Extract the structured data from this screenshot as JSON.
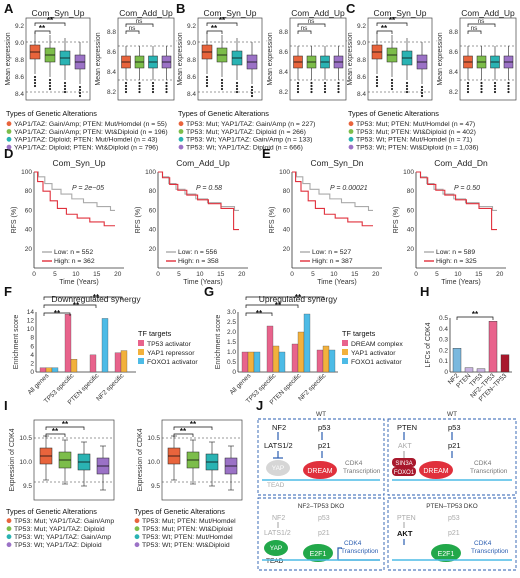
{
  "panel_letters": [
    "A",
    "B",
    "C",
    "D",
    "E",
    "F",
    "G",
    "H",
    "I",
    "J"
  ],
  "colors": {
    "orange": "#e8643c",
    "green": "#7cbd4a",
    "teal": "#2ab3b3",
    "purple": "#9b72c6",
    "red": "#e0303c",
    "gray": "#aaaaaa",
    "blue_dark": "#2a5db0",
    "pink": "#e8638c",
    "yellow": "#f2b13c",
    "skyblue": "#4dbbe6",
    "darkred": "#a8182c",
    "lightblue": "#7ab8de",
    "lavender": "#c9b3e0"
  },
  "boxplots": {
    "y_label": "Mean expression",
    "syn_title": "Com_Syn_Up",
    "add_title": "Com_Add_Up",
    "y_ticks": [
      "9.2",
      "9.0",
      "8.8",
      "8.6",
      "8.4"
    ],
    "add_ticks": [
      "8.8",
      "8.6",
      "8.4",
      "8.2"
    ],
    "sig": "**",
    "ns": "ns",
    "legend_title": "Types of Genetic Alterations",
    "A": {
      "legend": [
        "YAP1/TAZ: Gain/Amp; PTEN: Mut/Homdel (n = 55)",
        "YAP1/TAZ: Gain/Amp; PTEN: Wt&Diploid (n = 196)",
        "YAP1/TAZ: Diploid; PTEN: Mut/Homdel (n = 43)",
        "YAP1/TAZ: Diploid; PTEN: Wt&Diploid (n = 796)"
      ]
    },
    "B": {
      "legend": [
        "TP53: Mut; YAP1/TAZ: Gain/Amp (n = 227)",
        "TP53: Mut; YAP1/TAZ: Diploid (n = 266)",
        "TP53: Wt; YAP1/TAZ: Gain/Amp (n = 133)",
        "TP53: Wt; YAP1/TAZ: Diploid (n = 666)"
      ]
    },
    "C": {
      "legend": [
        "TP53: Mut; PTEN: Mut/Homdel (n = 47)",
        "TP53: Mut; PTEN: Wt&Diploid (n = 402)",
        "TP53: Wt; PTEN: Mut/Homdel (n = 71)",
        "TP53: Wt; PTEN: Wt&Diploid (n = 1,036)"
      ]
    }
  },
  "km": {
    "y_label": "RFS (%)",
    "x_label": "Time (Years)",
    "x_ticks": [
      "0",
      "5",
      "10",
      "15",
      "20"
    ],
    "y_ticks": [
      "100",
      "80",
      "60",
      "40",
      "20"
    ],
    "D1": {
      "title": "Com_Syn_Up",
      "p": "P = 2e−05",
      "low": "Low: n = 552",
      "high": "High: n = 362"
    },
    "D2": {
      "title": "Com_Add_Up",
      "p": "P = 0.58",
      "low": "Low: n = 556",
      "high": "High: n = 358"
    },
    "E1": {
      "title": "Com_Syn_Dn",
      "p": "P = 0.00021",
      "low": "Low: n = 527",
      "high": "High: n = 387"
    },
    "E2": {
      "title": "Com_Add_Dn",
      "p": "P = 0.50",
      "low": "Low: n = 589",
      "high": "High: n = 325"
    }
  },
  "bars": {
    "y_label": "Enrichment score",
    "categories": [
      "All genes",
      "TP53 specific",
      "PTEN specific",
      "NF2 specific"
    ],
    "F": {
      "title": "Downregulated synergy",
      "legend_title": "TF targets",
      "legend": [
        "TP53 activator",
        "YAP1 repressor",
        "FOXO1 activator"
      ],
      "y_ticks": [
        "0",
        "2",
        "4",
        "6",
        "8",
        "10",
        "12",
        "14"
      ],
      "ymax": 14,
      "series": [
        [
          1,
          13.5,
          4,
          4.5
        ],
        [
          1,
          3,
          0,
          5
        ],
        [
          1,
          0,
          12.5,
          0
        ]
      ]
    },
    "G": {
      "title": "Upregulated synergy",
      "legend_title": "TF targets",
      "legend": [
        "DREAM complex",
        "YAP1 activator",
        "FOXO1 activator"
      ],
      "y_ticks": [
        "0",
        "0.5",
        "1.0",
        "1.5",
        "2.0",
        "2.5",
        "3.0"
      ],
      "ymax": 3.0,
      "series": [
        [
          1,
          2.3,
          1.4,
          1.1
        ],
        [
          1,
          1.3,
          2.0,
          1.3
        ],
        [
          1,
          1.0,
          2.9,
          1.1
        ]
      ]
    },
    "H": {
      "y_label": "LFCs of CDK4",
      "y_ticks": [
        "0",
        "0.1",
        "0.2",
        "0.3",
        "0.4",
        "0.5"
      ],
      "categories": [
        "NF2",
        "PTEN",
        "TP53",
        "NF2–TP53",
        "PTEN–TP53"
      ],
      "values": [
        0.22,
        0.04,
        0.03,
        0.47,
        0.16
      ]
    }
  },
  "cdk4": {
    "y_label": "Expression of CDK4",
    "y_ticks": [
      "10.5",
      "10.0",
      "9.5"
    ],
    "legend_title": "Types of Genetic Alterations",
    "left_legend": [
      "TP53: Mut; YAP1/TAZ: Gain/Amp",
      "TP53: Mut; YAP1/TAZ: Diploid",
      "TP53: Wt; YAP1/TAZ: Gain/Amp",
      "TP53: Wt; YAP1/TAZ: Diploid"
    ],
    "right_legend": [
      "TP53: Mut; PTEN: Mut/Homdel",
      "TP53: Mut; PTEN: Wt&Diploid",
      "TP53: Wt; PTEN: Mut/Homdel",
      "TP53: Wt; PTEN: Wt&Diploid"
    ]
  },
  "diagram": {
    "wt": "WT",
    "dko1": "NF2–TP53 DKO",
    "dko2": "PTEN–TP53 DKO",
    "nf2": "NF2",
    "lats": "LATS1/2",
    "p53": "p53",
    "p21": "p21",
    "yap": "YAP",
    "tead": "TEAD",
    "dream": "DREAM",
    "cdk4": "CDK4",
    "transcription": "Transcription",
    "pten": "PTEN",
    "akt": "AKT",
    "sin3a": "SIN3A",
    "foxo1": "FOXO1",
    "e2f1": "E2F1"
  }
}
